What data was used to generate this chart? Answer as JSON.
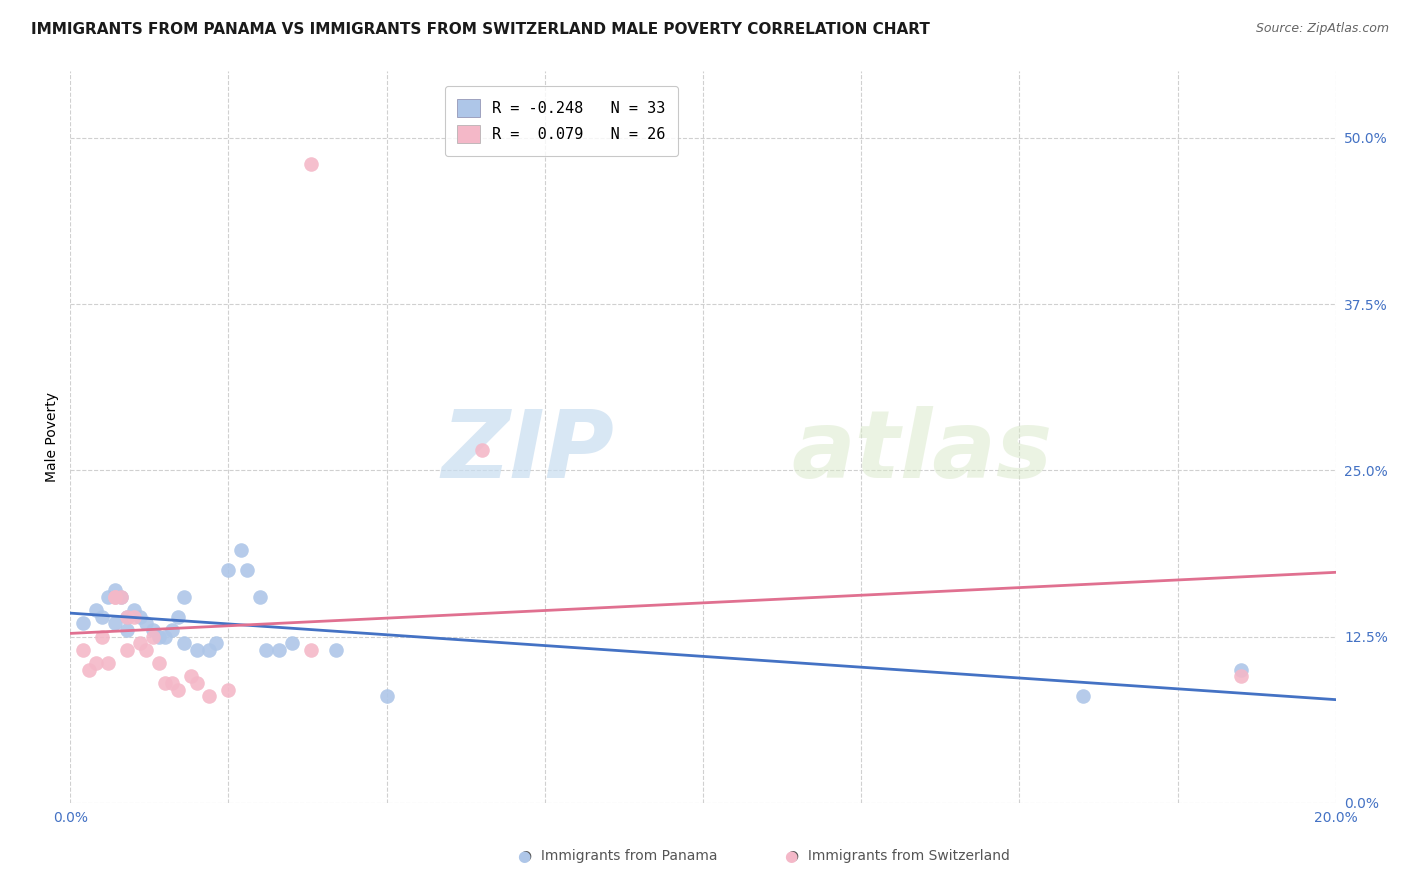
{
  "title": "IMMIGRANTS FROM PANAMA VS IMMIGRANTS FROM SWITZERLAND MALE POVERTY CORRELATION CHART",
  "source": "Source: ZipAtlas.com",
  "ylabel": "Male Poverty",
  "ytick_labels": [
    "0.0%",
    "12.5%",
    "25.0%",
    "37.5%",
    "50.0%"
  ],
  "ytick_values": [
    0.0,
    0.125,
    0.25,
    0.375,
    0.5
  ],
  "xlim": [
    0.0,
    0.2
  ],
  "ylim": [
    0.0,
    0.55
  ],
  "legend_entries": [
    {
      "label": "R = -0.248   N = 33",
      "color": "#aec6e8"
    },
    {
      "label": "R =  0.079   N = 26",
      "color": "#f4b8c8"
    }
  ],
  "panama_color": "#aec6e8",
  "switzerland_color": "#f4b8c8",
  "panama_line_color": "#4472c4",
  "switzerland_line_color": "#e07090",
  "panama_scatter": [
    [
      0.002,
      0.135
    ],
    [
      0.004,
      0.145
    ],
    [
      0.005,
      0.14
    ],
    [
      0.006,
      0.155
    ],
    [
      0.007,
      0.16
    ],
    [
      0.007,
      0.135
    ],
    [
      0.008,
      0.155
    ],
    [
      0.009,
      0.14
    ],
    [
      0.009,
      0.13
    ],
    [
      0.01,
      0.145
    ],
    [
      0.011,
      0.14
    ],
    [
      0.012,
      0.135
    ],
    [
      0.013,
      0.13
    ],
    [
      0.014,
      0.125
    ],
    [
      0.015,
      0.125
    ],
    [
      0.016,
      0.13
    ],
    [
      0.017,
      0.14
    ],
    [
      0.018,
      0.155
    ],
    [
      0.018,
      0.12
    ],
    [
      0.02,
      0.115
    ],
    [
      0.022,
      0.115
    ],
    [
      0.023,
      0.12
    ],
    [
      0.025,
      0.175
    ],
    [
      0.027,
      0.19
    ],
    [
      0.028,
      0.175
    ],
    [
      0.03,
      0.155
    ],
    [
      0.031,
      0.115
    ],
    [
      0.033,
      0.115
    ],
    [
      0.035,
      0.12
    ],
    [
      0.042,
      0.115
    ],
    [
      0.05,
      0.08
    ],
    [
      0.16,
      0.08
    ],
    [
      0.185,
      0.1
    ]
  ],
  "switzerland_scatter": [
    [
      0.002,
      0.115
    ],
    [
      0.003,
      0.1
    ],
    [
      0.004,
      0.105
    ],
    [
      0.005,
      0.125
    ],
    [
      0.006,
      0.105
    ],
    [
      0.007,
      0.155
    ],
    [
      0.007,
      0.155
    ],
    [
      0.008,
      0.155
    ],
    [
      0.009,
      0.14
    ],
    [
      0.009,
      0.115
    ],
    [
      0.01,
      0.14
    ],
    [
      0.011,
      0.12
    ],
    [
      0.012,
      0.115
    ],
    [
      0.013,
      0.125
    ],
    [
      0.014,
      0.105
    ],
    [
      0.015,
      0.09
    ],
    [
      0.016,
      0.09
    ],
    [
      0.017,
      0.085
    ],
    [
      0.019,
      0.095
    ],
    [
      0.02,
      0.09
    ],
    [
      0.022,
      0.08
    ],
    [
      0.025,
      0.085
    ],
    [
      0.038,
      0.115
    ],
    [
      0.065,
      0.265
    ],
    [
      0.185,
      0.095
    ],
    [
      0.038,
      0.48
    ]
  ],
  "watermark_zip": "ZIP",
  "watermark_atlas": "atlas",
  "background_color": "#ffffff",
  "grid_color": "#d0d0d0",
  "title_fontsize": 11,
  "axis_fontsize": 10,
  "tick_fontsize": 10,
  "source_fontsize": 9
}
